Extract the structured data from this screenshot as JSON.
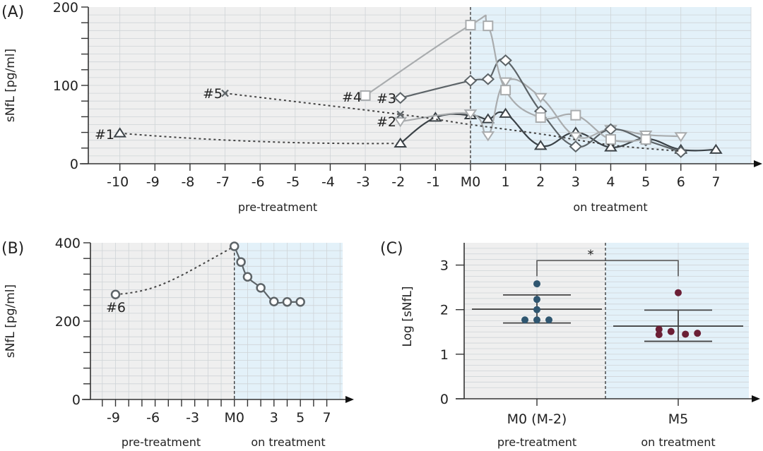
{
  "figure": {
    "panels": [
      "(A)",
      "(B)",
      "(C)"
    ]
  },
  "colors": {
    "pre_bg": "#efefef",
    "on_bg": "#e3f1f9",
    "grid": "#cfd4d7",
    "axis": "#333333",
    "dark_series": "#3b4247",
    "mid_series": "#5d6468",
    "light_series": "#a9acae",
    "pre_dots": "#2f5670",
    "on_dots": "#6b1f35"
  },
  "chart_data": [
    {
      "id": "A",
      "type": "line",
      "panel_label": "(A)",
      "ylabel": "sNfL [pg/ml]",
      "ylim": [
        0,
        200
      ],
      "yticks": [
        0,
        100,
        200
      ],
      "yminor_step": 20,
      "xlim": [
        -10.9,
        8.0
      ],
      "xticks": [
        -10,
        -9,
        -8,
        -7,
        -6,
        -5,
        -4,
        -3,
        -2,
        -1,
        0,
        1,
        2,
        3,
        4,
        5,
        6,
        7
      ],
      "xtick_labels": [
        "-10",
        "-9",
        "-8",
        "-7",
        "-6",
        "-5",
        "-4",
        "-3",
        "-2",
        "-1",
        "M0",
        "1",
        "2",
        "3",
        "4",
        "5",
        "6",
        "7"
      ],
      "treatment_start": 0,
      "region_labels": {
        "pre": "pre-treatment",
        "on": "on treatment"
      },
      "grid": true,
      "series": [
        {
          "name": "#1",
          "marker": "triangle-up",
          "color_key": "dark_series",
          "dotted": {
            "x": [
              -10,
              -2
            ],
            "y": [
              39,
              26
            ]
          },
          "x": [
            -2,
            -1,
            0,
            0.5,
            1,
            2,
            3,
            4,
            5,
            6,
            7
          ],
          "y": [
            26,
            59,
            62,
            57,
            64,
            23,
            40,
            21,
            32,
            18,
            18
          ]
        },
        {
          "name": "#2",
          "marker": "triangle-down",
          "color_key": "light_series",
          "x": [
            -2,
            0,
            0.5,
            1,
            2,
            3,
            4,
            5,
            6
          ],
          "y": [
            54,
            64,
            36,
            105,
            85,
            35,
            44,
            37,
            35
          ]
        },
        {
          "name": "#3",
          "marker": "diamond",
          "color_key": "mid_series",
          "x": [
            -2,
            0,
            0.5,
            1,
            2,
            3,
            4,
            5,
            6
          ],
          "y": [
            84,
            106,
            108,
            132,
            67,
            22,
            44,
            30,
            15
          ]
        },
        {
          "name": "#4",
          "marker": "square",
          "color_key": "light_series",
          "x": [
            -3,
            0,
            0.5,
            1,
            2,
            3,
            4,
            5
          ],
          "y": [
            87,
            177,
            176,
            94,
            59,
            62,
            31,
            31
          ]
        },
        {
          "name": "#5",
          "marker": "cross",
          "color_key": "mid_series",
          "dotted_only": true,
          "x": [
            -7,
            -2,
            0,
            2,
            4,
            6
          ],
          "y": [
            90,
            63,
            50,
            38,
            24,
            16
          ]
        }
      ]
    },
    {
      "id": "B",
      "type": "line",
      "panel_label": "(B)",
      "ylabel": "sNfL [pg/ml]",
      "ylim": [
        0,
        400
      ],
      "yticks": [
        0,
        200,
        400
      ],
      "yminor_step": 40,
      "xlim": [
        -10.9,
        8.2
      ],
      "xticks": [
        -10,
        -9,
        -8,
        -7,
        -6,
        -5,
        -4,
        -3,
        -2,
        -1,
        0,
        1,
        2,
        3,
        4,
        5,
        6,
        7
      ],
      "xtick_labels": [
        "",
        "-9",
        "",
        "",
        "-6",
        "",
        "",
        "-3",
        "",
        "",
        "M0",
        "",
        "",
        "3",
        "",
        "5",
        "",
        "7"
      ],
      "treatment_start": 0,
      "region_labels": {
        "pre": "pre-treatment",
        "on": "on treatment"
      },
      "grid": true,
      "series": [
        {
          "name": "#6",
          "marker": "circle",
          "color_key": "mid_series",
          "dotted": {
            "x": [
              -9,
              0
            ],
            "y": [
              268,
              391
            ]
          },
          "x": [
            0,
            0.5,
            1,
            2,
            3,
            4,
            5
          ],
          "y": [
            391,
            351,
            313,
            285,
            250,
            249,
            249
          ]
        }
      ]
    },
    {
      "id": "C",
      "type": "scatter",
      "panel_label": "(C)",
      "ylabel": "Log [sNfL]",
      "ylim": [
        0,
        3.5
      ],
      "yticks": [
        0,
        1,
        2,
        3
      ],
      "yminor_step": 0.25,
      "categories": [
        "M0 (M-2)",
        "M5"
      ],
      "category_sublabels": [
        "pre-treatment",
        "on treatment"
      ],
      "grid": true,
      "groups": [
        {
          "name": "M0 (M-2)",
          "color_key": "pre_dots",
          "points": [
            2.58,
            2.23,
            2.0,
            1.77,
            1.77,
            1.77
          ],
          "jitter": [
            0,
            0,
            0,
            -1,
            0,
            1
          ],
          "mean": 2.01,
          "sd_upper": 2.33,
          "sd_lower": 1.7
        },
        {
          "name": "M5",
          "color_key": "on_dots",
          "points": [
            2.38,
            1.56,
            1.44,
            1.51,
            1.45,
            1.47
          ],
          "jitter": [
            0,
            -1.6,
            -1.6,
            -0.6,
            0.6,
            1.6
          ],
          "mean": 1.63,
          "sd_upper": 1.99,
          "sd_lower": 1.29
        }
      ],
      "significance": {
        "label": "*",
        "between": [
          0,
          1
        ],
        "level": 3.1
      }
    }
  ]
}
